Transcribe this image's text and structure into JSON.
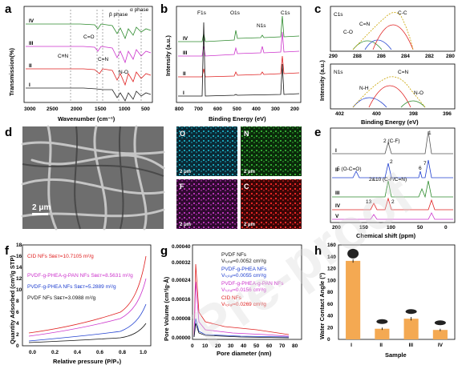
{
  "panels": {
    "a": {
      "letter": "a",
      "xlabel": "Wavenumber (cm⁻¹)",
      "ylabel": "Transmission(%)",
      "xticks": [
        "3000",
        "2500",
        "2000",
        "1500",
        "1000",
        "500"
      ],
      "curves": [
        "IV",
        "III",
        "II",
        "I"
      ],
      "annotations": {
        "cn": "C≡N",
        "co": "C=O",
        "ceqn": "C=N",
        "no": "N-O",
        "beta": "β phase",
        "alpha": "α phase"
      },
      "colors": [
        "#2e8b2e",
        "#cc33cc",
        "#e02020",
        "#222222"
      ]
    },
    "b": {
      "letter": "b",
      "xlabel": "Binding Energy (eV)",
      "ylabel": "Intensity (a.u.)",
      "xticks": [
        "800",
        "700",
        "600",
        "500",
        "400",
        "300",
        "200"
      ],
      "curves": [
        "IV",
        "III",
        "II",
        "I"
      ],
      "peaks": {
        "f1s": "F1s",
        "o1s": "O1s",
        "n1s": "N1s",
        "c1s": "C1s"
      }
    },
    "c": {
      "letter": "c",
      "xlabel": "Binding Energy (eV)",
      "ylabel": "Intensity (a.u.)",
      "top": {
        "title": "C1s",
        "xticks": [
          "290",
          "288",
          "286",
          "284",
          "282",
          "280"
        ],
        "co": "C-O",
        "cn": "C=N",
        "cc": "C-C"
      },
      "bottom": {
        "title": "N1s",
        "xticks": [
          "402",
          "400",
          "398",
          "396"
        ],
        "nh": "N-H",
        "ceqn": "C=N",
        "no": "N-O"
      }
    },
    "d": {
      "letter": "d",
      "scale": "2 μm"
    },
    "eds": {
      "maps": [
        {
          "label": "O",
          "scale": "2 μm",
          "color": "#1ec8e0"
        },
        {
          "label": "N",
          "scale": "2 μm",
          "color": "#3ecf3e"
        },
        {
          "label": "F",
          "scale": "2 μm",
          "color": "#e040e0"
        },
        {
          "label": "C",
          "scale": "2 μm",
          "color": "#ff2a2a"
        }
      ]
    },
    "e": {
      "letter": "e",
      "xlabel": "Chemical shift (ppm)",
      "xticks": [
        "200",
        "150",
        "100",
        "50",
        "0"
      ],
      "curves": [
        "I",
        "II",
        "III",
        "IV",
        "V"
      ],
      "annotations": {
        "p1": "1",
        "p2cf": "2 (C-F)",
        "p5": "5 (O-C=O)",
        "p2": "2",
        "p6": "6",
        "p7": "7",
        "p2and10": "2&10 (C-F/C=N)",
        "p13": "13",
        "p2b": "2"
      }
    },
    "f": {
      "letter": "f",
      "xlabel": "Relative pressure (P/P₀)",
      "ylabel": "Quantity  Adsorbed (cm³/g STP)",
      "xticks": [
        "0.0",
        "0.2",
        "0.4",
        "0.6",
        "0.8",
        "1.0"
      ],
      "yticks": [
        "0",
        "2",
        "4",
        "6",
        "8",
        "10",
        "12",
        "14",
        "16",
        "18"
      ],
      "legend": [
        {
          "text": "CID NFs  Sʙᴇᴛ=10.7105 m²/g",
          "color": "#e02020"
        },
        {
          "text": "PVDF-g-PHEA-g-PAN NFs  Sʙᴇᴛ=8.5631 m²/g",
          "color": "#cc33cc"
        },
        {
          "text": "PVDF-g-PHEA NFs  Sʙᴇᴛ=5.2889 m²/g",
          "color": "#2040d0"
        },
        {
          "text": "PVDF NFs  Sʙᴇᴛ=3.0988 m²/g",
          "color": "#111111"
        }
      ]
    },
    "g": {
      "letter": "g",
      "xlabel": "Pore diameter (nm)",
      "ylabel": "Pore Volume (cm³/g·Å)",
      "xticks": [
        "0",
        "10",
        "20",
        "30",
        "40",
        "50",
        "60",
        "70",
        "80"
      ],
      "yticks": [
        "0.00000",
        "0.00008",
        "0.00016",
        "0.00024",
        "0.00032",
        "0.00040"
      ],
      "legend": [
        {
          "name": "PVDF NFs",
          "vtotal": "Vₜₒₜₐₗ=0.0052 cm³/g",
          "color": "#111111"
        },
        {
          "name": "PVDF-g-PHEA NFs",
          "vtotal": "Vₜₒₜₐₗ=0.0055 cm³/g",
          "color": "#2040d0"
        },
        {
          "name": "PVDF-g-PHEA-g-PAN NFs",
          "vtotal": "Vₜₒₜₐₗ=0.0156 cm³/g",
          "color": "#cc33cc"
        },
        {
          "name": "CID NFs",
          "vtotal": "Vₜₒₜₐₗ=0.0269 cm³/g",
          "color": "#e02020"
        }
      ]
    },
    "h": {
      "letter": "h",
      "xlabel": "Sample",
      "ylabel": "Water Contact Angle (°)",
      "bar_color": "#f4a952"
    }
  },
  "chart_data": [
    {
      "type": "bar",
      "panel": "h",
      "categories": [
        "I",
        "II",
        "III",
        "IV"
      ],
      "values": [
        133,
        18,
        35,
        16
      ],
      "errors": [
        3,
        2,
        3,
        2
      ],
      "ylim": [
        0,
        160
      ],
      "yticks": [
        0,
        20,
        40,
        60,
        80,
        100,
        120,
        140,
        160
      ],
      "xlabel": "Sample",
      "ylabel": "Water Contact Angle (°)"
    }
  ],
  "watermark": "Pre-proof"
}
